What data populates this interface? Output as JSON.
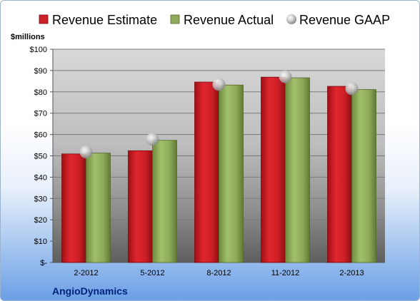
{
  "chart_data": {
    "type": "bar",
    "unit_label": "$millions",
    "company": "AngioDynamics",
    "categories": [
      "2-2012",
      "5-2012",
      "8-2012",
      "11-2012",
      "2-2013"
    ],
    "series": [
      {
        "name": "Revenue Estimate",
        "kind": "bar",
        "color": "#cc2127",
        "values": [
          50.9,
          52.4,
          84.6,
          86.9,
          82.6
        ]
      },
      {
        "name": "Revenue Actual",
        "kind": "bar",
        "color": "#8fab5a",
        "values": [
          51.3,
          57.3,
          83.2,
          86.6,
          81.1
        ]
      },
      {
        "name": "Revenue GAAP",
        "kind": "marker",
        "color": "#c8c8c8",
        "values": [
          51.8,
          57.8,
          83.5,
          87.1,
          81.5
        ]
      }
    ],
    "ylim": [
      0,
      100
    ],
    "yticks": [
      0,
      10,
      20,
      30,
      40,
      50,
      60,
      70,
      80,
      90,
      100
    ],
    "ytick_labels": [
      "$-",
      "$10",
      "$20",
      "$30",
      "$40",
      "$50",
      "$60",
      "$70",
      "$80",
      "$90",
      "$100"
    ],
    "grid": true,
    "legend_position": "top"
  }
}
